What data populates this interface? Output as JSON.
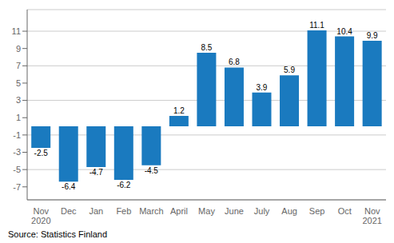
{
  "chart_data": {
    "type": "bar",
    "categories": [
      "Nov\n2020",
      "Dec",
      "Jan",
      "Feb",
      "March",
      "April",
      "May",
      "June",
      "July",
      "Aug",
      "Sep",
      "Oct",
      "Nov\n2021"
    ],
    "values": [
      -2.5,
      -6.4,
      -4.7,
      -6.2,
      -4.5,
      1.2,
      8.5,
      6.8,
      3.9,
      5.9,
      11.1,
      10.4,
      9.9
    ],
    "color": "#1a7abf",
    "ylim": [
      -8.5,
      13.5
    ],
    "yticks": [
      -7,
      -5,
      -3,
      -1,
      1,
      3,
      5,
      7,
      9,
      11
    ],
    "grid": true,
    "data_labels": true,
    "annotations": [
      "Source: Statistics Finland"
    ]
  }
}
